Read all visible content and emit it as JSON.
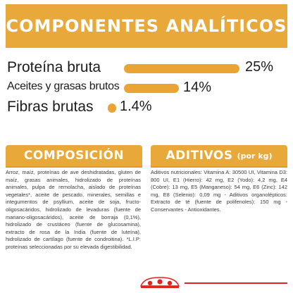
{
  "analytics": {
    "title": "COMPONENTES ANALÍTICOS",
    "rows": [
      {
        "label": "Proteína bruta",
        "value": "25%",
        "fraction": 0.25
      },
      {
        "label": "Aceites y grasas brutos",
        "value": "14%",
        "fraction": 0.14
      },
      {
        "label": "Fibras brutas",
        "value": "1.4%",
        "fraction": 0.014
      }
    ]
  },
  "composition": {
    "title": "COMPOSICIÓN",
    "text": "Arroz, maíz, proteínas de ave deshidratadas, gluten de maíz, grasas animales, hidrolizado de proteínas animales, pulpa de remolacha, aislado de proteínas vegetales*, aceite de pescado, minerales, semillas e integumentos de psyllium, aceite de soja, fructo-oligosacáridos, hidrolizado de levaduras (fuente de manano-oligosacáridos), aceite de borraja (0,1%), hidrolizado de crustáceo (fuente de glucosamina), extracto de rosa de la India (fuente de luteína), hidrolizado de cartílago (fuente de condroitina). *L.I.P: proteínas seleccionadas por su elevada digestibilidad."
  },
  "additives": {
    "title": "ADITIVOS",
    "unit": "(por kg)",
    "text": "Aditivos nutricionales: Vitamina A: 30500 UI, Vitamina D3: 800 UI, E1 (Hierro): 42 mg, E2 (Yodo): 4,2 mg, E4 (Cobre): 13 mg, E5 (Manganeso): 54 mg, E6 (Zinc): 142 mg, E8 (Selenio): 0,09 mg - Aditivos organolépticos: Extracto de té (fuente de polifenoles): 150 mg - Conservantes - Antioxidantes."
  },
  "colors": {
    "accent": "#e9a93a",
    "brand_red": "#e1251b"
  },
  "logo": {
    "name": "royal-canin-crown-logo"
  }
}
